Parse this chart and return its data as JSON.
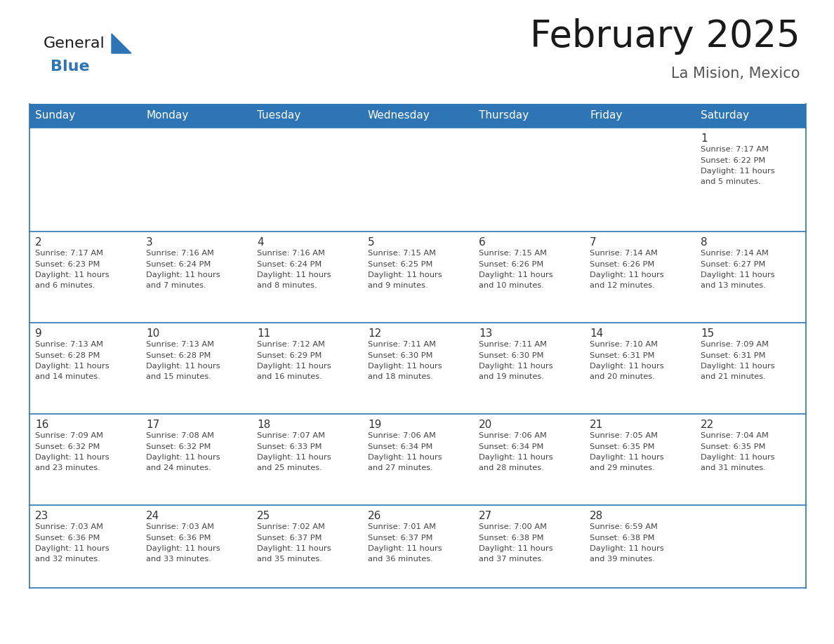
{
  "title": "February 2025",
  "subtitle": "La Mision, Mexico",
  "days_of_week": [
    "Sunday",
    "Monday",
    "Tuesday",
    "Wednesday",
    "Thursday",
    "Friday",
    "Saturday"
  ],
  "header_bg_color": "#2E75B6",
  "header_text_color": "#FFFFFF",
  "row_border_color": "#2E75B6",
  "cell_bg_color": "#FFFFFF",
  "cell_bg_alt": "#F2F2F2",
  "day_number_color": "#333333",
  "info_text_color": "#444444",
  "background_color": "#FFFFFF",
  "title_color": "#1a1a1a",
  "subtitle_color": "#555555",
  "logo_general_color": "#1a1a1a",
  "logo_blue_color": "#2E75B6",
  "logo_triangle_color": "#2E75B6",
  "calendar_data": [
    [
      null,
      null,
      null,
      null,
      null,
      null,
      {
        "day": 1,
        "sunrise": "7:17 AM",
        "sunset": "6:22 PM",
        "daylight": "11 hours and 5 minutes."
      }
    ],
    [
      {
        "day": 2,
        "sunrise": "7:17 AM",
        "sunset": "6:23 PM",
        "daylight": "11 hours and 6 minutes."
      },
      {
        "day": 3,
        "sunrise": "7:16 AM",
        "sunset": "6:24 PM",
        "daylight": "11 hours and 7 minutes."
      },
      {
        "day": 4,
        "sunrise": "7:16 AM",
        "sunset": "6:24 PM",
        "daylight": "11 hours and 8 minutes."
      },
      {
        "day": 5,
        "sunrise": "7:15 AM",
        "sunset": "6:25 PM",
        "daylight": "11 hours and 9 minutes."
      },
      {
        "day": 6,
        "sunrise": "7:15 AM",
        "sunset": "6:26 PM",
        "daylight": "11 hours and 10 minutes."
      },
      {
        "day": 7,
        "sunrise": "7:14 AM",
        "sunset": "6:26 PM",
        "daylight": "11 hours and 12 minutes."
      },
      {
        "day": 8,
        "sunrise": "7:14 AM",
        "sunset": "6:27 PM",
        "daylight": "11 hours and 13 minutes."
      }
    ],
    [
      {
        "day": 9,
        "sunrise": "7:13 AM",
        "sunset": "6:28 PM",
        "daylight": "11 hours and 14 minutes."
      },
      {
        "day": 10,
        "sunrise": "7:13 AM",
        "sunset": "6:28 PM",
        "daylight": "11 hours and 15 minutes."
      },
      {
        "day": 11,
        "sunrise": "7:12 AM",
        "sunset": "6:29 PM",
        "daylight": "11 hours and 16 minutes."
      },
      {
        "day": 12,
        "sunrise": "7:11 AM",
        "sunset": "6:30 PM",
        "daylight": "11 hours and 18 minutes."
      },
      {
        "day": 13,
        "sunrise": "7:11 AM",
        "sunset": "6:30 PM",
        "daylight": "11 hours and 19 minutes."
      },
      {
        "day": 14,
        "sunrise": "7:10 AM",
        "sunset": "6:31 PM",
        "daylight": "11 hours and 20 minutes."
      },
      {
        "day": 15,
        "sunrise": "7:09 AM",
        "sunset": "6:31 PM",
        "daylight": "11 hours and 21 minutes."
      }
    ],
    [
      {
        "day": 16,
        "sunrise": "7:09 AM",
        "sunset": "6:32 PM",
        "daylight": "11 hours and 23 minutes."
      },
      {
        "day": 17,
        "sunrise": "7:08 AM",
        "sunset": "6:32 PM",
        "daylight": "11 hours and 24 minutes."
      },
      {
        "day": 18,
        "sunrise": "7:07 AM",
        "sunset": "6:33 PM",
        "daylight": "11 hours and 25 minutes."
      },
      {
        "day": 19,
        "sunrise": "7:06 AM",
        "sunset": "6:34 PM",
        "daylight": "11 hours and 27 minutes."
      },
      {
        "day": 20,
        "sunrise": "7:06 AM",
        "sunset": "6:34 PM",
        "daylight": "11 hours and 28 minutes."
      },
      {
        "day": 21,
        "sunrise": "7:05 AM",
        "sunset": "6:35 PM",
        "daylight": "11 hours and 29 minutes."
      },
      {
        "day": 22,
        "sunrise": "7:04 AM",
        "sunset": "6:35 PM",
        "daylight": "11 hours and 31 minutes."
      }
    ],
    [
      {
        "day": 23,
        "sunrise": "7:03 AM",
        "sunset": "6:36 PM",
        "daylight": "11 hours and 32 minutes."
      },
      {
        "day": 24,
        "sunrise": "7:03 AM",
        "sunset": "6:36 PM",
        "daylight": "11 hours and 33 minutes."
      },
      {
        "day": 25,
        "sunrise": "7:02 AM",
        "sunset": "6:37 PM",
        "daylight": "11 hours and 35 minutes."
      },
      {
        "day": 26,
        "sunrise": "7:01 AM",
        "sunset": "6:37 PM",
        "daylight": "11 hours and 36 minutes."
      },
      {
        "day": 27,
        "sunrise": "7:00 AM",
        "sunset": "6:38 PM",
        "daylight": "11 hours and 37 minutes."
      },
      {
        "day": 28,
        "sunrise": "6:59 AM",
        "sunset": "6:38 PM",
        "daylight": "11 hours and 39 minutes."
      },
      null
    ]
  ]
}
